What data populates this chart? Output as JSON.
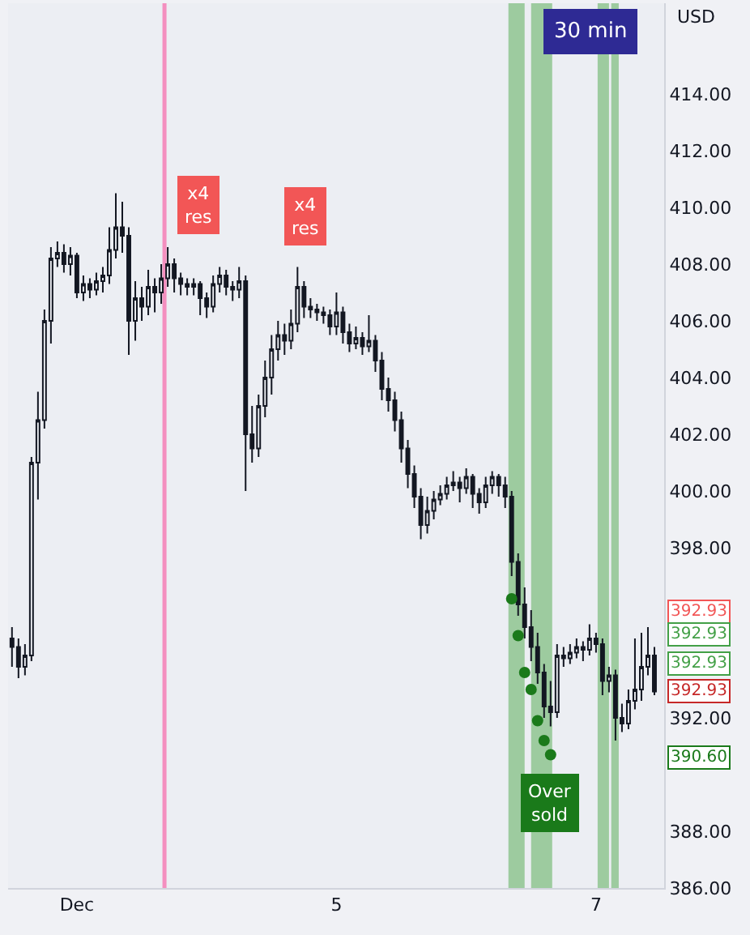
{
  "chart_data": {
    "type": "candlestick",
    "title": "30 min",
    "ylabel": "USD",
    "categories": [
      null,
      null,
      null,
      null,
      null,
      null,
      null,
      null,
      null,
      null,
      "Dec",
      null,
      null,
      null,
      null,
      null,
      null,
      null,
      null,
      null,
      null,
      null,
      null,
      null,
      null,
      null,
      null,
      null,
      null,
      null,
      null,
      null,
      null,
      null,
      null,
      null,
      null,
      null,
      null,
      null,
      null,
      null,
      null,
      null,
      null,
      null,
      null,
      null,
      null,
      null,
      "5",
      null,
      null,
      null,
      null,
      null,
      null,
      null,
      null,
      null,
      null,
      null,
      null,
      null,
      null,
      null,
      null,
      null,
      null,
      null,
      null,
      null,
      null,
      null,
      null,
      null,
      null,
      null,
      null,
      null,
      null,
      null,
      null,
      null,
      null,
      null,
      null,
      null,
      null,
      null,
      "7",
      null,
      null,
      null,
      null,
      null,
      null,
      null,
      null,
      null
    ],
    "ohlc": [
      [
        394.8,
        395.2,
        393.8,
        394.5
      ],
      [
        394.5,
        394.8,
        393.4,
        393.8
      ],
      [
        393.8,
        394.6,
        393.5,
        394.2
      ],
      [
        394.2,
        401.2,
        394.0,
        401.0
      ],
      [
        401.0,
        403.5,
        399.7,
        402.5
      ],
      [
        402.5,
        406.4,
        402.2,
        406.0
      ],
      [
        406.0,
        408.6,
        405.2,
        408.2
      ],
      [
        408.2,
        408.8,
        407.9,
        408.4
      ],
      [
        408.4,
        408.7,
        407.7,
        408.0
      ],
      [
        408.0,
        408.6,
        407.6,
        408.3
      ],
      [
        408.3,
        408.4,
        406.8,
        407.0
      ],
      [
        407.0,
        407.6,
        406.7,
        407.3
      ],
      [
        407.3,
        407.5,
        406.8,
        407.1
      ],
      [
        407.1,
        407.7,
        406.9,
        407.4
      ],
      [
        407.4,
        407.9,
        407.0,
        407.6
      ],
      [
        407.6,
        409.3,
        407.3,
        408.5
      ],
      [
        408.5,
        410.5,
        408.2,
        409.3
      ],
      [
        409.3,
        410.2,
        408.4,
        409.0
      ],
      [
        409.0,
        409.3,
        404.8,
        406.0
      ],
      [
        406.0,
        407.4,
        405.3,
        406.8
      ],
      [
        406.8,
        407.2,
        406.0,
        406.5
      ],
      [
        406.5,
        407.8,
        406.2,
        407.2
      ],
      [
        407.2,
        407.5,
        406.3,
        407.0
      ],
      [
        407.0,
        408.0,
        406.6,
        407.5
      ],
      [
        407.5,
        408.6,
        407.2,
        408.0
      ],
      [
        408.0,
        408.2,
        407.0,
        407.5
      ],
      [
        407.5,
        407.7,
        406.9,
        407.3
      ],
      [
        407.3,
        407.5,
        406.9,
        407.2
      ],
      [
        407.2,
        407.5,
        406.9,
        407.3
      ],
      [
        407.3,
        407.4,
        406.2,
        406.8
      ],
      [
        406.8,
        407.0,
        406.1,
        406.5
      ],
      [
        406.5,
        407.6,
        406.3,
        407.3
      ],
      [
        407.3,
        407.9,
        407.0,
        407.6
      ],
      [
        407.6,
        407.8,
        406.9,
        407.2
      ],
      [
        407.2,
        407.4,
        406.7,
        407.1
      ],
      [
        407.1,
        407.9,
        406.8,
        407.4
      ],
      [
        407.4,
        407.6,
        400.0,
        402.0
      ],
      [
        402.0,
        403.0,
        401.0,
        401.5
      ],
      [
        401.5,
        403.4,
        401.2,
        403.0
      ],
      [
        403.0,
        404.6,
        402.6,
        404.0
      ],
      [
        404.0,
        405.5,
        403.4,
        405.0
      ],
      [
        405.0,
        406.0,
        404.6,
        405.5
      ],
      [
        405.5,
        405.9,
        404.8,
        405.3
      ],
      [
        405.3,
        406.4,
        405.0,
        405.9
      ],
      [
        405.9,
        407.9,
        405.6,
        407.2
      ],
      [
        407.2,
        407.4,
        406.1,
        406.5
      ],
      [
        406.5,
        406.8,
        406.1,
        406.4
      ],
      [
        406.4,
        406.6,
        406.0,
        406.3
      ],
      [
        406.3,
        406.5,
        405.9,
        406.2
      ],
      [
        406.2,
        406.4,
        405.5,
        405.8
      ],
      [
        405.8,
        407.0,
        405.5,
        406.3
      ],
      [
        406.3,
        406.5,
        405.2,
        405.6
      ],
      [
        405.6,
        405.9,
        404.9,
        405.2
      ],
      [
        405.2,
        405.8,
        405.0,
        405.4
      ],
      [
        405.4,
        405.6,
        404.8,
        405.1
      ],
      [
        405.1,
        406.2,
        404.9,
        405.3
      ],
      [
        405.3,
        405.5,
        404.2,
        404.6
      ],
      [
        404.6,
        404.9,
        403.2,
        403.6
      ],
      [
        403.6,
        404.0,
        402.8,
        403.2
      ],
      [
        403.2,
        403.5,
        402.1,
        402.5
      ],
      [
        402.5,
        402.8,
        401.0,
        401.5
      ],
      [
        401.5,
        401.8,
        400.1,
        400.6
      ],
      [
        400.6,
        400.9,
        399.4,
        399.8
      ],
      [
        399.8,
        400.1,
        398.3,
        398.8
      ],
      [
        398.8,
        399.8,
        398.5,
        399.3
      ],
      [
        399.3,
        400.0,
        399.0,
        399.7
      ],
      [
        399.7,
        400.2,
        399.5,
        399.9
      ],
      [
        399.9,
        400.5,
        399.7,
        400.2
      ],
      [
        400.2,
        400.7,
        400.0,
        400.3
      ],
      [
        400.3,
        400.5,
        399.6,
        400.1
      ],
      [
        400.1,
        400.8,
        399.9,
        400.5
      ],
      [
        400.5,
        400.6,
        399.4,
        399.9
      ],
      [
        399.9,
        400.1,
        399.2,
        399.6
      ],
      [
        399.6,
        400.5,
        399.4,
        400.2
      ],
      [
        400.2,
        400.7,
        399.9,
        400.5
      ],
      [
        400.5,
        400.6,
        399.8,
        400.2
      ],
      [
        400.2,
        400.5,
        399.4,
        399.8
      ],
      [
        399.8,
        400.0,
        397.0,
        397.5
      ],
      [
        397.5,
        397.8,
        395.6,
        396.0
      ],
      [
        396.0,
        396.6,
        394.8,
        395.2
      ],
      [
        395.2,
        395.8,
        394.0,
        394.5
      ],
      [
        394.5,
        395.0,
        393.2,
        393.6
      ],
      [
        393.6,
        393.9,
        392.0,
        392.4
      ],
      [
        392.4,
        393.3,
        391.7,
        392.2
      ],
      [
        392.2,
        394.6,
        392.0,
        394.2
      ],
      [
        394.2,
        394.5,
        393.8,
        394.1
      ],
      [
        394.1,
        394.6,
        393.9,
        394.3
      ],
      [
        394.3,
        394.8,
        394.1,
        394.5
      ],
      [
        394.5,
        394.7,
        394.0,
        394.4
      ],
      [
        394.4,
        395.3,
        394.2,
        394.8
      ],
      [
        394.8,
        395.0,
        394.3,
        394.6
      ],
      [
        394.6,
        394.8,
        392.8,
        393.3
      ],
      [
        393.3,
        393.8,
        392.9,
        393.5
      ],
      [
        393.5,
        393.7,
        391.2,
        392.0
      ],
      [
        392.0,
        392.5,
        391.5,
        391.8
      ],
      [
        391.8,
        393.0,
        391.6,
        392.6
      ],
      [
        392.6,
        394.8,
        392.3,
        393.0
      ],
      [
        393.0,
        395.0,
        392.6,
        393.8
      ],
      [
        393.8,
        395.2,
        393.5,
        394.2
      ],
      [
        394.2,
        394.5,
        392.8,
        392.93
      ]
    ],
    "color": "#131722",
    "series": [
      {
        "type": "scatter",
        "color": "#1b7a1b",
        "marker": "circle",
        "values": [
          null,
          null,
          null,
          null,
          null,
          null,
          null,
          null,
          null,
          null,
          null,
          null,
          null,
          null,
          null,
          null,
          null,
          null,
          null,
          null,
          null,
          null,
          null,
          null,
          null,
          null,
          null,
          null,
          null,
          null,
          null,
          null,
          null,
          null,
          null,
          null,
          null,
          null,
          null,
          null,
          null,
          null,
          null,
          null,
          null,
          null,
          null,
          null,
          null,
          null,
          null,
          null,
          null,
          null,
          null,
          null,
          null,
          null,
          null,
          null,
          null,
          null,
          null,
          null,
          null,
          null,
          null,
          null,
          null,
          null,
          null,
          null,
          null,
          null,
          null,
          null,
          null,
          396.2,
          394.9,
          393.6,
          393.0,
          391.9,
          391.2,
          390.7,
          null,
          null,
          null,
          null,
          null,
          null,
          null,
          null,
          null,
          null,
          null,
          null,
          null,
          null,
          null,
          null
        ]
      }
    ],
    "ylim": [
      386,
      417.2
    ],
    "yticks": [
      {
        "value": 386,
        "label": "386.00"
      },
      {
        "value": 388,
        "label": "388.00"
      },
      {
        "value": 392,
        "label": "392.00"
      },
      {
        "value": 398,
        "label": "398.00"
      },
      {
        "value": 400,
        "label": "400.00"
      },
      {
        "value": 402,
        "label": "402.00"
      },
      {
        "value": 404,
        "label": "404.00"
      },
      {
        "value": 406,
        "label": "406.00"
      },
      {
        "value": 408,
        "label": "408.00"
      },
      {
        "value": 410,
        "label": "410.00"
      },
      {
        "value": 412,
        "label": "412.00"
      },
      {
        "value": 414,
        "label": "414.00"
      }
    ],
    "annotations": [
      "x4\nres",
      "x4\nres",
      "Over\nsold",
      "392.93",
      "392.93",
      "392.93",
      "392.93",
      "390.60"
    ],
    "grid": false
  }
}
